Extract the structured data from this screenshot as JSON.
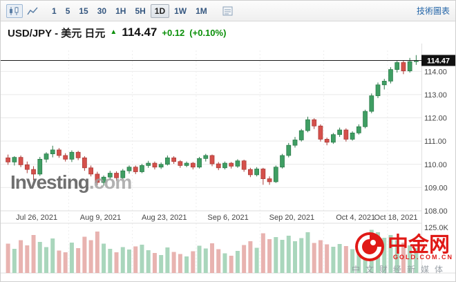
{
  "toolbar": {
    "intervals": [
      "1",
      "5",
      "15",
      "30",
      "1H",
      "5H",
      "1D",
      "1W",
      "1M"
    ],
    "selected_interval": "1D",
    "right_link": "技術圖表"
  },
  "header": {
    "title": "USD/JPY - 美元 日元",
    "up_arrow": "▲",
    "price": "114.47",
    "change": "+0.12",
    "change_pct": "(+0.10%)"
  },
  "watermark": {
    "bold": "Investing",
    "suffix": ".com"
  },
  "site_logo": {
    "name": "中金网",
    "subtitle": "GOLD.COM.CN",
    "tagline": "中文财经新媒体"
  },
  "chart_data": {
    "type": "candlestick+volume",
    "title": "USD/JPY daily candlestick chart with volume",
    "x_labels": [
      "Jul 26, 2021",
      "Aug 9, 2021",
      "Aug 23, 2021",
      "Sep 6, 2021",
      "Sep 20, 2021",
      "Oct 4, 2021",
      "Oct 18, 2021"
    ],
    "x_label_indices": [
      0,
      10,
      20,
      30,
      40,
      50,
      60
    ],
    "y_ticks": [
      114.0,
      113.0,
      112.0,
      111.0,
      110.0,
      109.0,
      108.0
    ],
    "y_range": [
      108.0,
      114.9
    ],
    "last_price": 114.47,
    "last_price_label": "114.47",
    "volume_axis_label": "125.0K",
    "volume_scale_max": 140,
    "colors": {
      "up": "#3f9e63",
      "up_border": "#2b7a49",
      "down": "#d5504b",
      "down_border": "#a93a36",
      "vol_up": "#a9d6bc",
      "vol_down": "#e8b3b0",
      "grid": "#e9e9e9",
      "last_price_line": "#1a1a1a",
      "change_green": "#0a8f08",
      "link_blue": "#2264a7"
    },
    "candles": [
      [
        110.28,
        110.42,
        109.98,
        110.1,
        85
      ],
      [
        110.1,
        110.35,
        109.95,
        110.3,
        70
      ],
      [
        110.3,
        110.38,
        109.88,
        109.98,
        95
      ],
      [
        109.98,
        110.12,
        109.62,
        109.78,
        80
      ],
      [
        109.78,
        109.92,
        109.32,
        109.58,
        110
      ],
      [
        109.58,
        110.32,
        109.5,
        110.22,
        90
      ],
      [
        110.22,
        110.52,
        110.08,
        110.45,
        75
      ],
      [
        110.45,
        110.8,
        110.3,
        110.62,
        100
      ],
      [
        110.62,
        110.7,
        110.28,
        110.38,
        65
      ],
      [
        110.38,
        110.48,
        110.12,
        110.22,
        60
      ],
      [
        110.22,
        110.6,
        110.1,
        110.52,
        88
      ],
      [
        110.52,
        110.58,
        110.18,
        110.28,
        72
      ],
      [
        110.28,
        110.35,
        109.72,
        109.85,
        105
      ],
      [
        109.85,
        109.95,
        109.48,
        109.58,
        95
      ],
      [
        109.58,
        109.68,
        109.1,
        109.22,
        120
      ],
      [
        109.22,
        109.52,
        109.08,
        109.45,
        85
      ],
      [
        109.45,
        109.72,
        109.35,
        109.62,
        70
      ],
      [
        109.62,
        109.7,
        109.3,
        109.42,
        60
      ],
      [
        109.42,
        109.8,
        109.38,
        109.72,
        75
      ],
      [
        109.72,
        109.95,
        109.6,
        109.88,
        68
      ],
      [
        109.88,
        109.95,
        109.58,
        109.68,
        77
      ],
      [
        109.68,
        110.02,
        109.62,
        109.95,
        82
      ],
      [
        109.95,
        110.15,
        109.85,
        110.05,
        66
      ],
      [
        110.05,
        110.12,
        109.78,
        109.88,
        58
      ],
      [
        109.88,
        110.08,
        109.8,
        110.0,
        52
      ],
      [
        110.0,
        110.38,
        109.95,
        110.28,
        74
      ],
      [
        110.28,
        110.35,
        110.02,
        110.12,
        61
      ],
      [
        110.12,
        110.18,
        109.85,
        109.95,
        55
      ],
      [
        109.95,
        110.12,
        109.88,
        110.05,
        48
      ],
      [
        110.05,
        110.1,
        109.78,
        109.88,
        63
      ],
      [
        109.88,
        110.32,
        109.82,
        110.25,
        79
      ],
      [
        110.25,
        110.45,
        110.12,
        110.38,
        71
      ],
      [
        110.38,
        110.42,
        109.92,
        110.02,
        86
      ],
      [
        110.02,
        110.1,
        109.75,
        109.85,
        69
      ],
      [
        109.85,
        110.12,
        109.78,
        110.05,
        57
      ],
      [
        110.05,
        110.1,
        109.82,
        109.92,
        50
      ],
      [
        109.92,
        110.22,
        109.85,
        110.15,
        64
      ],
      [
        110.15,
        110.2,
        109.68,
        109.78,
        81
      ],
      [
        109.78,
        109.85,
        109.45,
        109.55,
        92
      ],
      [
        109.55,
        109.88,
        109.48,
        109.8,
        73
      ],
      [
        109.8,
        109.85,
        109.12,
        109.38,
        115
      ],
      [
        109.38,
        109.48,
        109.12,
        109.25,
        98
      ],
      [
        109.25,
        109.95,
        109.2,
        109.88,
        104
      ],
      [
        109.88,
        110.45,
        109.82,
        110.38,
        96
      ],
      [
        110.38,
        110.92,
        110.3,
        110.82,
        108
      ],
      [
        110.82,
        111.18,
        110.72,
        111.05,
        92
      ],
      [
        111.05,
        111.52,
        110.98,
        111.45,
        101
      ],
      [
        111.45,
        112.05,
        111.38,
        111.92,
        118
      ],
      [
        111.92,
        111.98,
        111.52,
        111.65,
        87
      ],
      [
        111.65,
        111.72,
        110.98,
        111.08,
        95
      ],
      [
        111.08,
        111.15,
        110.82,
        110.95,
        83
      ],
      [
        110.95,
        111.35,
        110.88,
        111.28,
        76
      ],
      [
        111.28,
        111.58,
        111.18,
        111.48,
        84
      ],
      [
        111.48,
        111.55,
        110.98,
        111.08,
        78
      ],
      [
        111.08,
        111.42,
        111.02,
        111.35,
        69
      ],
      [
        111.35,
        111.72,
        111.28,
        111.62,
        88
      ],
      [
        111.62,
        112.35,
        111.55,
        112.28,
        112
      ],
      [
        112.28,
        113.05,
        112.2,
        112.95,
        125
      ],
      [
        112.95,
        113.52,
        112.85,
        113.42,
        118
      ],
      [
        113.42,
        113.68,
        113.22,
        113.58,
        102
      ],
      [
        113.58,
        114.18,
        113.48,
        114.08,
        110
      ],
      [
        114.08,
        114.45,
        113.95,
        114.38,
        95
      ],
      [
        114.38,
        114.48,
        113.88,
        114.02,
        88
      ],
      [
        114.02,
        114.58,
        113.95,
        114.42,
        80
      ],
      [
        114.42,
        114.7,
        114.28,
        114.47,
        72
      ]
    ]
  }
}
